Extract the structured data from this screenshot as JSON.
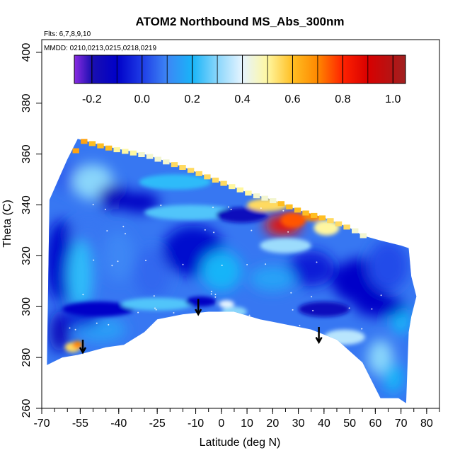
{
  "chart_data": {
    "type": "heatmap",
    "title": "ATOM2 Northbound MS_Abs_300nm",
    "subtitles": [
      "Flts: 6,7,8,9,10",
      "MMDD: 0210,0213,0215,0218,0219"
    ],
    "xlabel": "Latitude (deg N)",
    "ylabel": "Theta (C)",
    "xlim": [
      -70,
      85
    ],
    "ylim": [
      260,
      405
    ],
    "x_ticks": [
      -70,
      -55,
      -40,
      -25,
      -10,
      0,
      10,
      20,
      30,
      40,
      50,
      60,
      70,
      80
    ],
    "x_tick_labels": [
      "-70",
      "-55",
      "-40",
      "-25",
      "-10",
      "0",
      "10",
      "20",
      "30",
      "40",
      "50",
      "60",
      "70",
      "80"
    ],
    "y_ticks": [
      260,
      280,
      300,
      320,
      340,
      360,
      380,
      400
    ],
    "y_tick_labels": [
      "260",
      "280",
      "300",
      "320",
      "340",
      "360",
      "380",
      "400"
    ],
    "colorbar": {
      "range": [
        -0.27,
        1.05
      ],
      "ticks": [
        -0.2,
        0.0,
        0.2,
        0.4,
        0.6,
        0.8,
        1.0
      ],
      "tick_labels": [
        "-0.2",
        "0.0",
        "0.2",
        "0.4",
        "0.6",
        "0.8",
        "1.0"
      ],
      "stops": [
        {
          "v": -0.27,
          "c": "#8a2be2"
        },
        {
          "v": -0.2,
          "c": "#1a0fb0"
        },
        {
          "v": -0.1,
          "c": "#0000c8"
        },
        {
          "v": 0.0,
          "c": "#1e3ce6"
        },
        {
          "v": 0.1,
          "c": "#3d86f5"
        },
        {
          "v": 0.2,
          "c": "#18b4f8"
        },
        {
          "v": 0.3,
          "c": "#8ad6fb"
        },
        {
          "v": 0.4,
          "c": "#e6f4ff"
        },
        {
          "v": 0.5,
          "c": "#fff7a0"
        },
        {
          "v": 0.6,
          "c": "#ffbe22"
        },
        {
          "v": 0.7,
          "c": "#ff8800"
        },
        {
          "v": 0.8,
          "c": "#ff2200"
        },
        {
          "v": 0.9,
          "c": "#d80000"
        },
        {
          "v": 1.05,
          "c": "#a02020"
        }
      ]
    },
    "field_outline": [
      [
        -68,
        277
      ],
      [
        -67,
        342
      ],
      [
        -60,
        358
      ],
      [
        -56,
        366
      ],
      [
        -45,
        363
      ],
      [
        -30,
        360
      ],
      [
        -15,
        355
      ],
      [
        0,
        349
      ],
      [
        10,
        345
      ],
      [
        20,
        342
      ],
      [
        30,
        338
      ],
      [
        40,
        335
      ],
      [
        50,
        331
      ],
      [
        55,
        328
      ],
      [
        62,
        326
      ],
      [
        70,
        324
      ],
      [
        73,
        323
      ],
      [
        74,
        312
      ],
      [
        76,
        304
      ],
      [
        74,
        296
      ],
      [
        73,
        290
      ],
      [
        72,
        262
      ],
      [
        69,
        264
      ],
      [
        62,
        264
      ],
      [
        55,
        278
      ],
      [
        45,
        287
      ],
      [
        35,
        291
      ],
      [
        25,
        293
      ],
      [
        15,
        295
      ],
      [
        5,
        298
      ],
      [
        -5,
        298
      ],
      [
        -15,
        297
      ],
      [
        -25,
        295
      ],
      [
        -30,
        290
      ],
      [
        -38,
        285
      ],
      [
        -45,
        284
      ],
      [
        -56,
        281
      ],
      [
        -62,
        280
      ],
      [
        -66,
        278
      ]
    ],
    "features": [
      {
        "lat": -58,
        "theta": 351,
        "value": 0.05,
        "rx": 9,
        "ry": 6
      },
      {
        "lat": -50,
        "theta": 349,
        "value": 0.3,
        "rx": 8,
        "ry": 7
      },
      {
        "lat": -42,
        "theta": 343,
        "value": -0.15,
        "rx": 6,
        "ry": 5
      },
      {
        "lat": -32,
        "theta": 341,
        "value": -0.12,
        "rx": 8,
        "ry": 4
      },
      {
        "lat": -18,
        "theta": 349,
        "value": 0.22,
        "rx": 14,
        "ry": 3
      },
      {
        "lat": -12,
        "theta": 337,
        "value": 0.25,
        "rx": 18,
        "ry": 3
      },
      {
        "lat": -62,
        "theta": 318,
        "value": -0.08,
        "rx": 7,
        "ry": 16
      },
      {
        "lat": -52,
        "theta": 328,
        "value": 0.08,
        "rx": 7,
        "ry": 6
      },
      {
        "lat": -55,
        "theta": 312,
        "value": 0.22,
        "rx": 5,
        "ry": 14
      },
      {
        "lat": -40,
        "theta": 320,
        "value": 0.1,
        "rx": 6,
        "ry": 10
      },
      {
        "lat": -27,
        "theta": 313,
        "value": 0.06,
        "rx": 7,
        "ry": 10
      },
      {
        "lat": -11,
        "theta": 322,
        "value": -0.08,
        "rx": 12,
        "ry": 10
      },
      {
        "lat": 0,
        "theta": 314,
        "value": 0.2,
        "rx": 8,
        "ry": 8
      },
      {
        "lat": 8,
        "theta": 336,
        "value": -0.15,
        "rx": 10,
        "ry": 3
      },
      {
        "lat": 18,
        "theta": 340,
        "value": 0.55,
        "rx": 8,
        "ry": 2.5
      },
      {
        "lat": 24,
        "theta": 332,
        "value": 0.85,
        "rx": 7,
        "ry": 4
      },
      {
        "lat": 28,
        "theta": 334,
        "value": 0.75,
        "rx": 5,
        "ry": 3
      },
      {
        "lat": 36,
        "theta": 336,
        "value": 0.7,
        "rx": 4,
        "ry": 2.5
      },
      {
        "lat": 41,
        "theta": 331,
        "value": 0.5,
        "rx": 5,
        "ry": 3
      },
      {
        "lat": 25,
        "theta": 324,
        "value": 0.32,
        "rx": 10,
        "ry": 3
      },
      {
        "lat": 35,
        "theta": 315,
        "value": -0.05,
        "rx": 9,
        "ry": 7
      },
      {
        "lat": 20,
        "theta": 311,
        "value": 0.16,
        "rx": 9,
        "ry": 5
      },
      {
        "lat": 55,
        "theta": 310,
        "value": -0.1,
        "rx": 12,
        "ry": 9
      },
      {
        "lat": 65,
        "theta": 316,
        "value": 0.02,
        "rx": 8,
        "ry": 10
      },
      {
        "lat": 70,
        "theta": 295,
        "value": 0.2,
        "rx": 4,
        "ry": 6
      },
      {
        "lat": -48,
        "theta": 299,
        "value": -0.1,
        "rx": 14,
        "ry": 3
      },
      {
        "lat": -25,
        "theta": 301,
        "value": 0.25,
        "rx": 14,
        "ry": 2.5
      },
      {
        "lat": -8,
        "theta": 302,
        "value": -0.12,
        "rx": 6,
        "ry": 2
      },
      {
        "lat": 2,
        "theta": 301,
        "value": 0.4,
        "rx": 3,
        "ry": 1.5
      },
      {
        "lat": 5,
        "theta": 298,
        "value": 0.3,
        "rx": 5,
        "ry": 2
      },
      {
        "lat": 40,
        "theta": 299,
        "value": -0.15,
        "rx": 10,
        "ry": 3
      },
      {
        "lat": 62,
        "theta": 300,
        "value": -0.1,
        "rx": 10,
        "ry": 4
      },
      {
        "lat": 48,
        "theta": 288,
        "value": 0.35,
        "rx": 8,
        "ry": 3
      },
      {
        "lat": 62,
        "theta": 280,
        "value": 0.3,
        "rx": 5,
        "ry": 7
      },
      {
        "lat": 67,
        "theta": 272,
        "value": 0.2,
        "rx": 4,
        "ry": 6
      },
      {
        "lat": -63,
        "theta": 290,
        "value": -0.15,
        "rx": 4,
        "ry": 8
      },
      {
        "lat": -58,
        "theta": 284,
        "value": 0.55,
        "rx": 3,
        "ry": 2
      },
      {
        "lat": -56,
        "theta": 285,
        "value": 0.7,
        "rx": 2,
        "ry": 1.5
      },
      {
        "lat": -47,
        "theta": 291,
        "value": 0.15,
        "rx": 10,
        "ry": 5
      },
      {
        "lat": -55,
        "theta": 296,
        "value": -0.05,
        "rx": 8,
        "ry": 4
      }
    ],
    "upper_edge_values": [
      {
        "lat": -58,
        "value": 0.65
      },
      {
        "lat": -50,
        "value": 0.6
      },
      {
        "lat": -40,
        "value": 0.5
      },
      {
        "lat": -28,
        "value": 0.45
      },
      {
        "lat": -15,
        "value": 0.55
      },
      {
        "lat": -5,
        "value": 0.55
      },
      {
        "lat": 5,
        "value": 0.5
      },
      {
        "lat": 15,
        "value": 0.45
      },
      {
        "lat": 25,
        "value": 0.6
      },
      {
        "lat": 35,
        "value": 0.6
      },
      {
        "lat": 45,
        "value": 0.55
      },
      {
        "lat": 55,
        "value": 0.45
      }
    ],
    "arrows": [
      {
        "lat": -54,
        "theta": 287,
        "tip": 282
      },
      {
        "lat": -9,
        "theta": 303,
        "tip": 297
      },
      {
        "lat": 38,
        "theta": 292,
        "tip": 286
      }
    ]
  }
}
